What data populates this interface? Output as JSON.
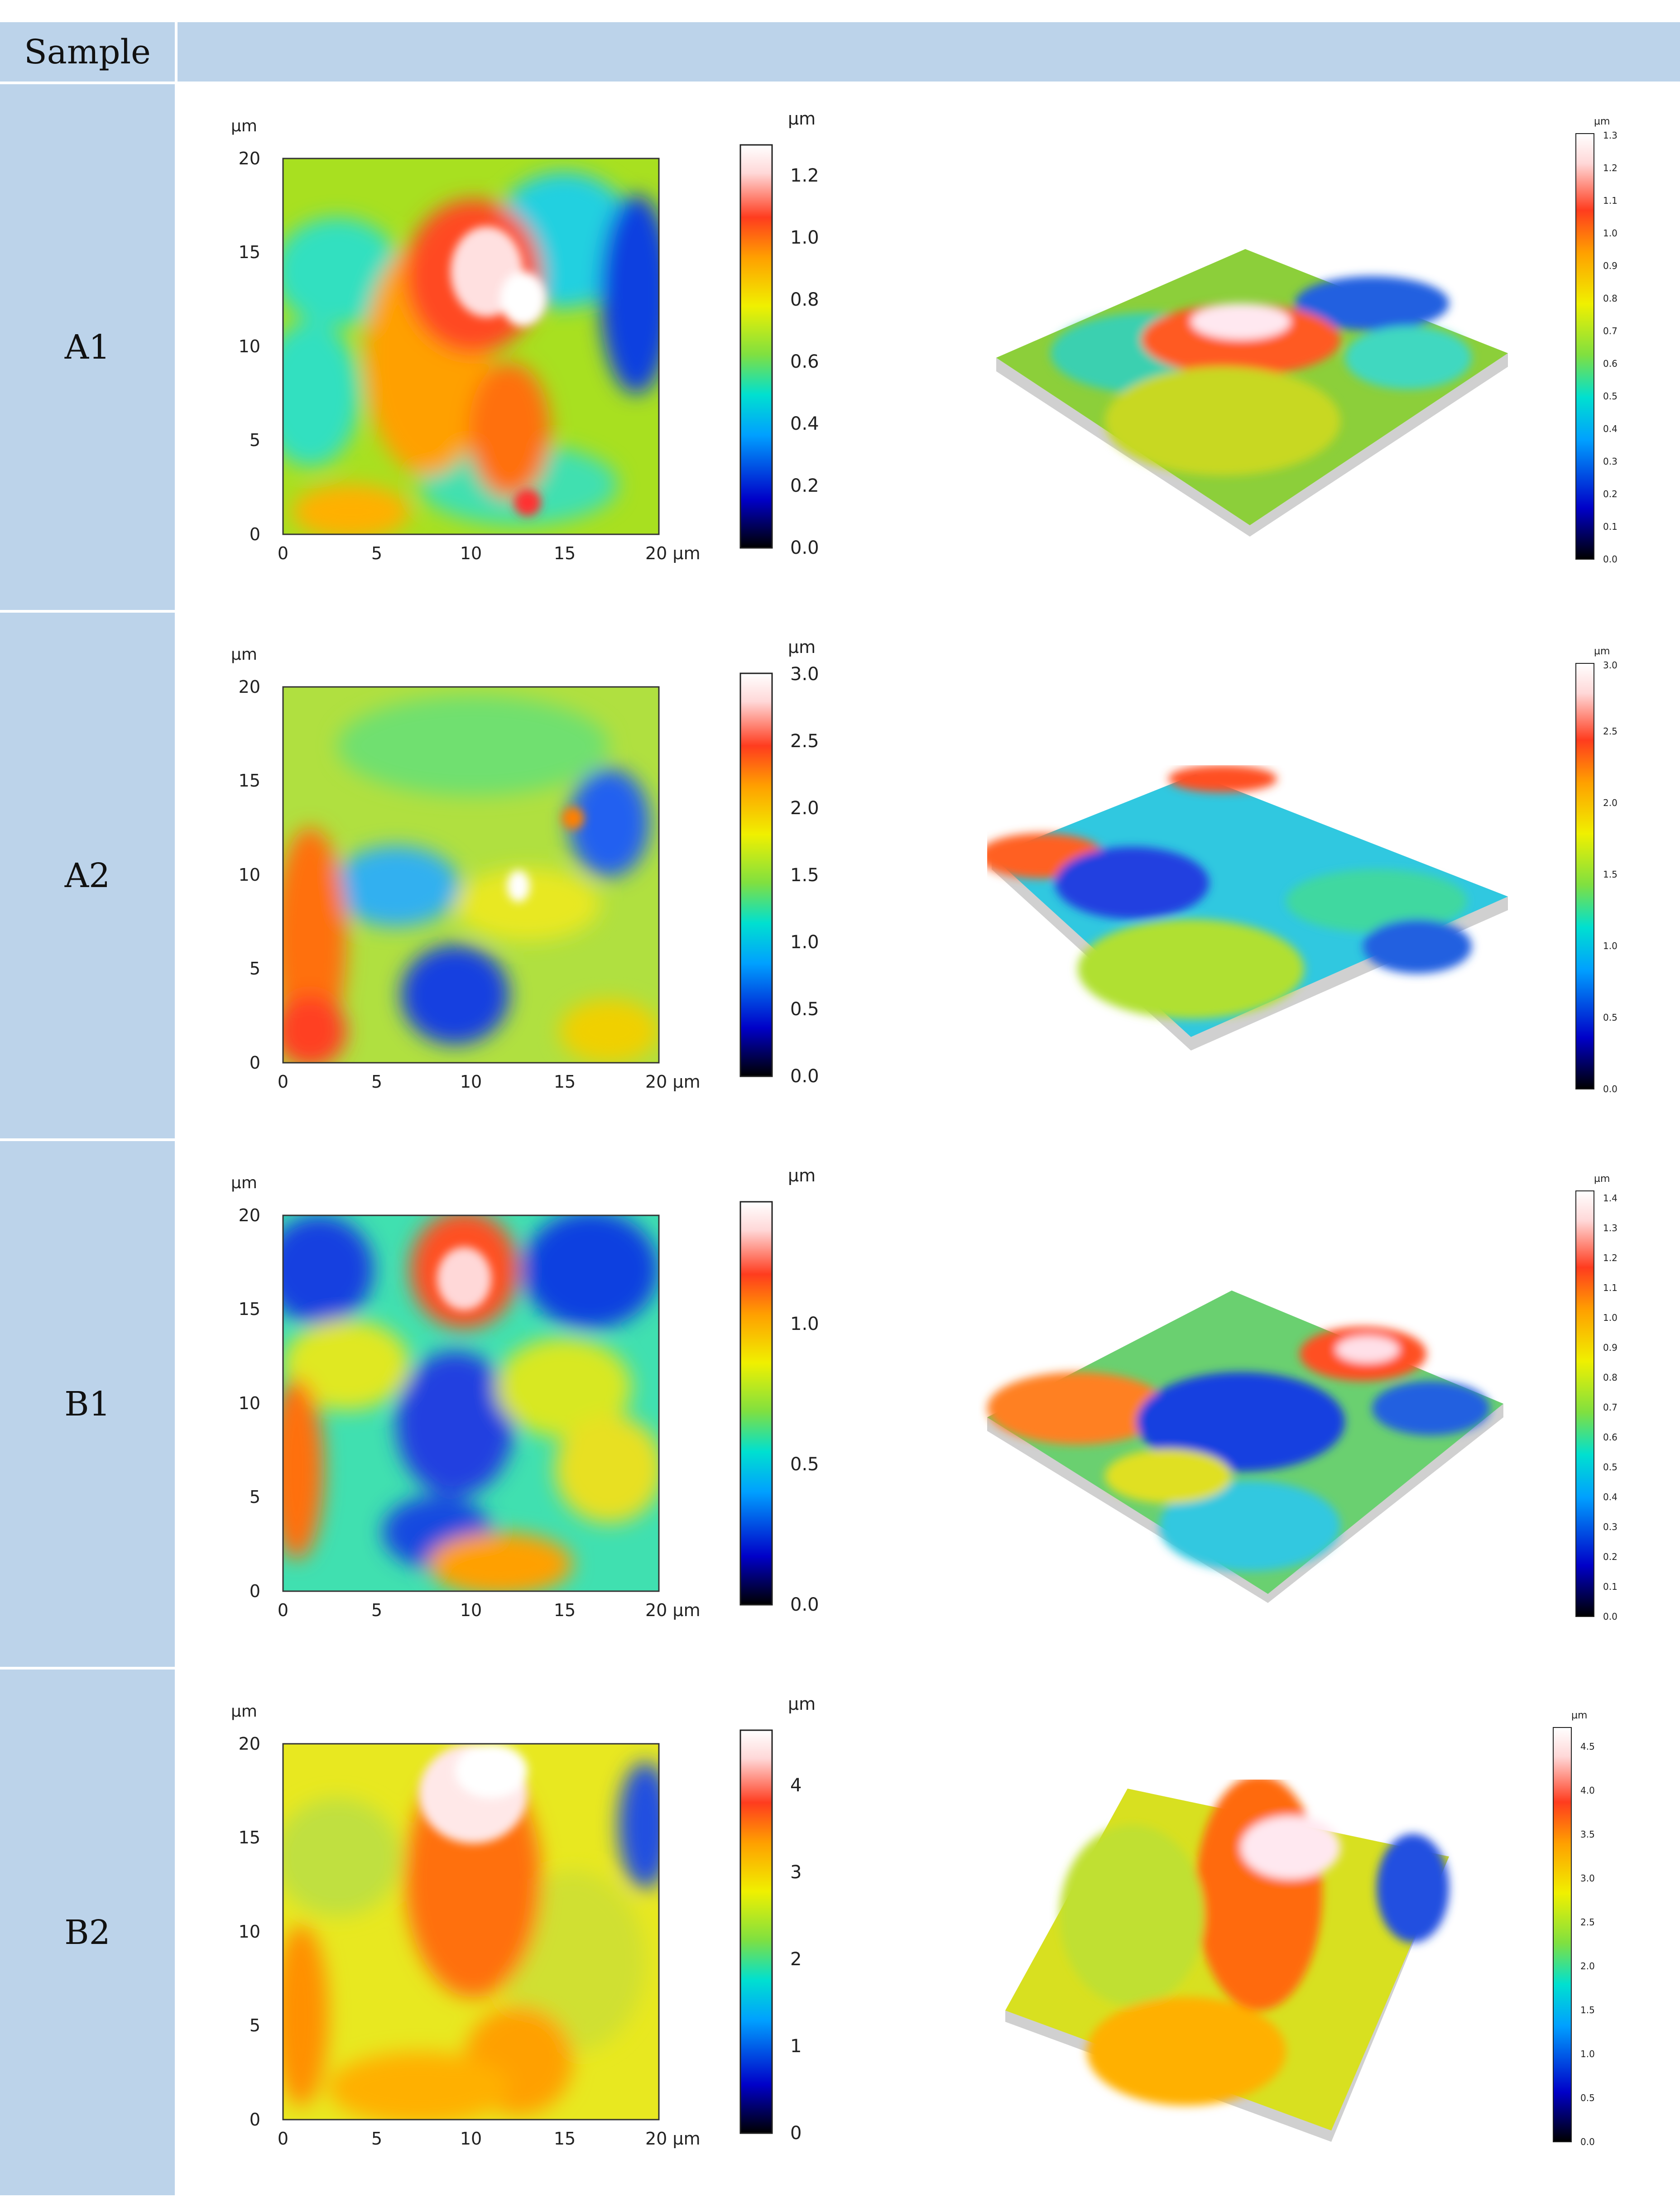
{
  "table": {
    "header_label": "Sample",
    "header_right": ""
  },
  "axis_unit": "µm",
  "x_ticks": [
    "0",
    "5",
    "10",
    "15",
    "20 µm"
  ],
  "y_ticks": [
    "0",
    "5",
    "10",
    "15",
    "20"
  ],
  "rows": [
    {
      "label": "A1",
      "scale2d": [
        "0.0",
        "0.2",
        "0.4",
        "0.6",
        "0.8",
        "1.0",
        "1.2"
      ],
      "scale3d": [
        "0.0",
        "0.1",
        "0.2",
        "0.3",
        "0.4",
        "0.5",
        "0.6",
        "0.7",
        "0.8",
        "0.9",
        "1.0",
        "1.1",
        "1.2",
        "1.3"
      ]
    },
    {
      "label": "A2",
      "scale2d": [
        "0.0",
        "0.5",
        "1.0",
        "1.5",
        "2.0",
        "2.5",
        "3.0"
      ],
      "scale3d": [
        "0.0",
        "0.5",
        "1.0",
        "1.5",
        "2.0",
        "2.5",
        "3.0"
      ]
    },
    {
      "label": "B1",
      "scale2d": [
        "0.0",
        "0.5",
        "1.0"
      ],
      "scale3d": [
        "0.0",
        "0.1",
        "0.2",
        "0.3",
        "0.4",
        "0.5",
        "0.6",
        "0.7",
        "0.8",
        "0.9",
        "1.0",
        "1.1",
        "1.2",
        "1.3",
        "1.4"
      ]
    },
    {
      "label": "B2",
      "scale2d": [
        "0",
        "1",
        "2",
        "3",
        "4"
      ],
      "scale3d": [
        "0.0",
        "0.5",
        "1.0",
        "1.5",
        "2.0",
        "2.5",
        "3.0",
        "3.5",
        "4.0",
        "4.5"
      ]
    }
  ],
  "colors": {
    "table_fill": "#bcd3ea",
    "colormap": [
      "#000000",
      "#0000c8",
      "#00a0ff",
      "#00e0d0",
      "#80e040",
      "#f0f000",
      "#ffa000",
      "#ff3c1e",
      "#ffd8d8",
      "#ffffff"
    ]
  }
}
